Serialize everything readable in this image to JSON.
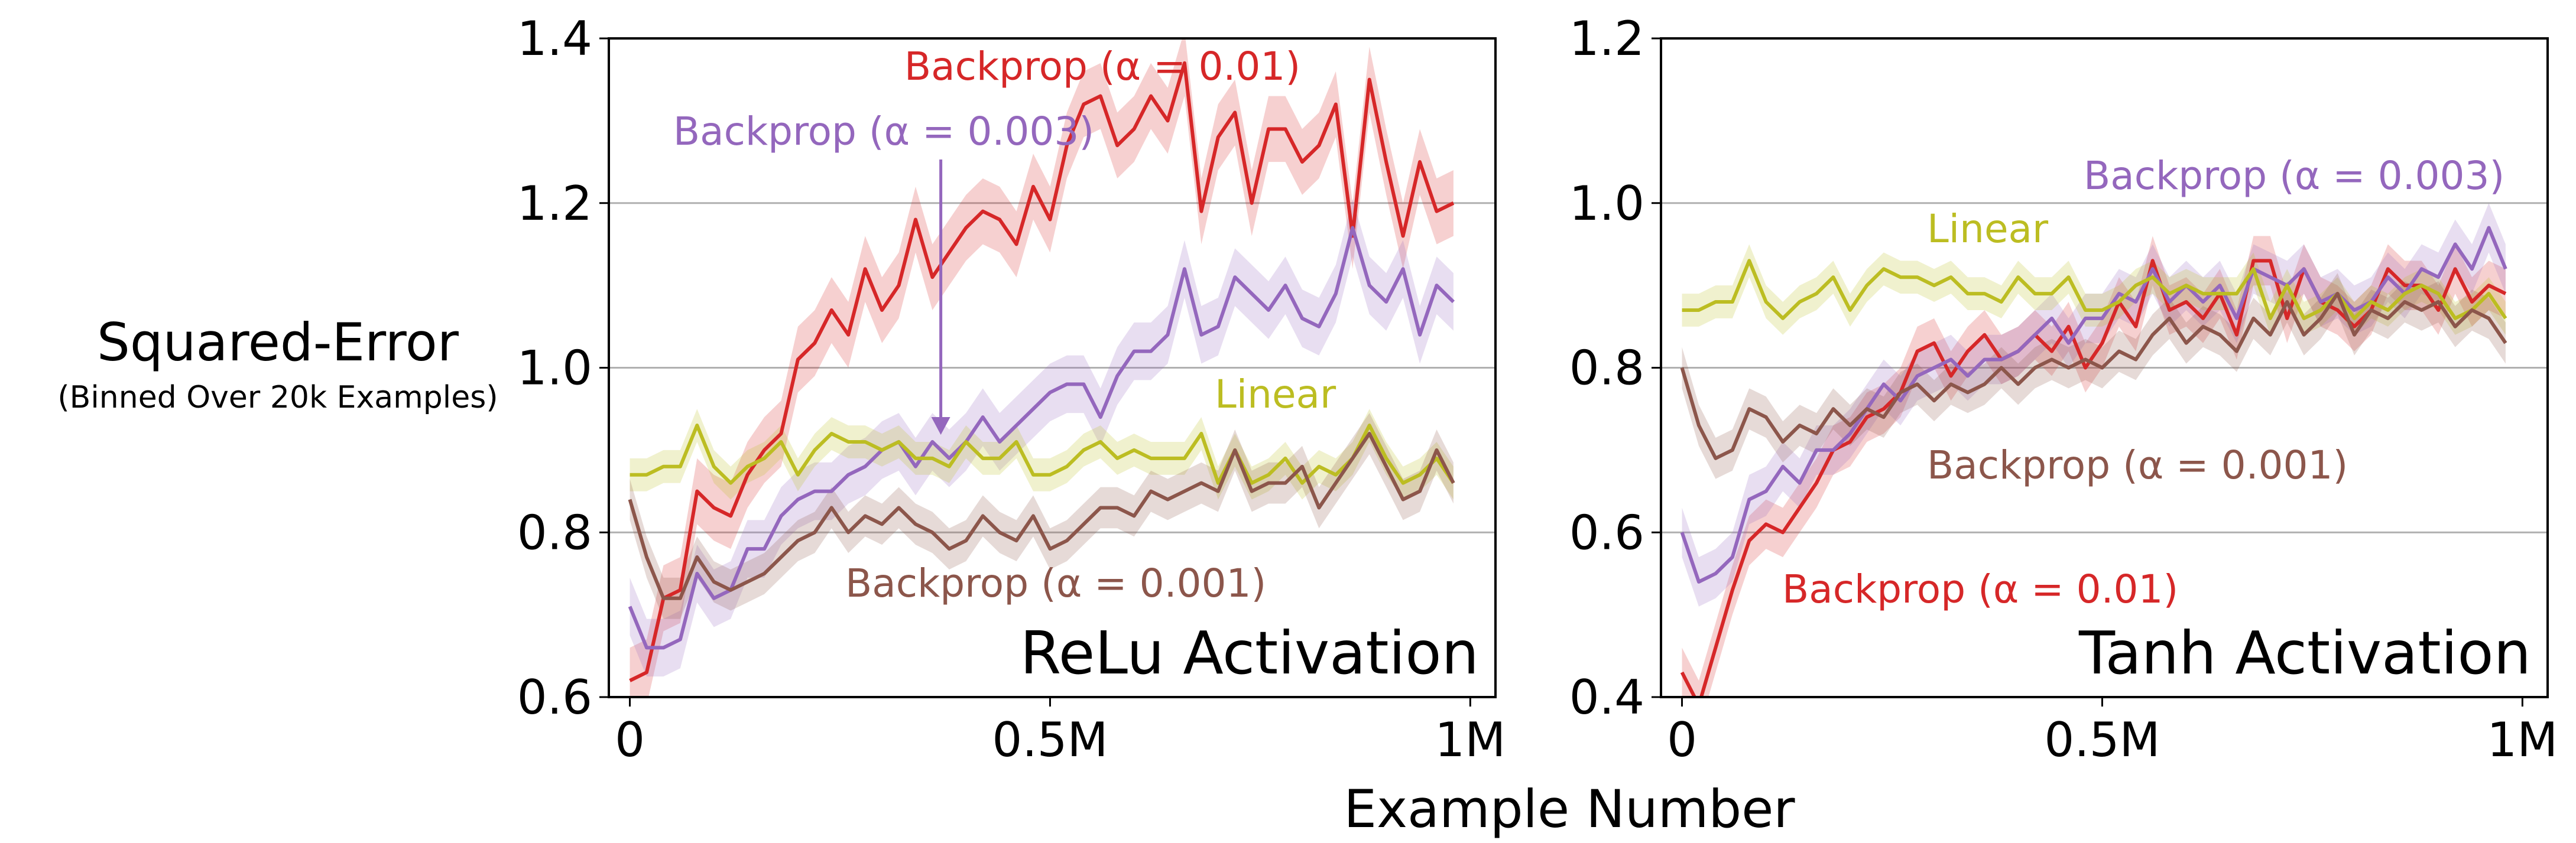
{
  "figure": {
    "ylabel": "Squared-Error",
    "ylabel_sub": "(Binned Over 20k Examples)",
    "xlabel": "Example Number",
    "x_tick_labels": [
      "0",
      "0.5M",
      "1M"
    ]
  },
  "colors": {
    "red": "#d62728",
    "purple": "#9467bd",
    "olive": "#bcbd22",
    "brown": "#8c564b",
    "grid": "#b0b0b0"
  },
  "chart_data": [
    {
      "type": "line",
      "title": "ReLu Activation",
      "xlim": [
        -0.025,
        1.03
      ],
      "ylim": [
        0.6,
        1.4
      ],
      "x_unit": "M",
      "y_ticks": [
        "0.6",
        "0.8",
        "1.0",
        "1.2",
        "1.4"
      ],
      "y_tick_values": [
        0.6,
        0.8,
        1.0,
        1.2,
        1.4
      ],
      "grid": "horizontal",
      "x": [
        0.0,
        0.02,
        0.04,
        0.06,
        0.08,
        0.1,
        0.12,
        0.14,
        0.16,
        0.18,
        0.2,
        0.22,
        0.24,
        0.26,
        0.28,
        0.3,
        0.32,
        0.34,
        0.36,
        0.38,
        0.4,
        0.42,
        0.44,
        0.46,
        0.48,
        0.5,
        0.52,
        0.54,
        0.56,
        0.58,
        0.6,
        0.62,
        0.64,
        0.66,
        0.68,
        0.7,
        0.72,
        0.74,
        0.76,
        0.78,
        0.8,
        0.82,
        0.84,
        0.86,
        0.88,
        0.9,
        0.92,
        0.94,
        0.96,
        0.98
      ],
      "series": [
        {
          "name": "Backprop (α = 0.01)",
          "color_key": "red",
          "label_text": "Backprop (α = 0.01)",
          "values": [
            0.62,
            0.63,
            0.72,
            0.73,
            0.85,
            0.83,
            0.82,
            0.87,
            0.9,
            0.92,
            1.01,
            1.03,
            1.07,
            1.04,
            1.12,
            1.07,
            1.1,
            1.18,
            1.11,
            1.14,
            1.17,
            1.19,
            1.18,
            1.15,
            1.22,
            1.18,
            1.27,
            1.32,
            1.33,
            1.27,
            1.29,
            1.33,
            1.3,
            1.37,
            1.19,
            1.28,
            1.31,
            1.2,
            1.29,
            1.29,
            1.25,
            1.27,
            1.32,
            1.16,
            1.35,
            1.25,
            1.16,
            1.25,
            1.19,
            1.2
          ],
          "band": 0.04
        },
        {
          "name": "Backprop (α = 0.003)",
          "color_key": "purple",
          "label_text": "Backprop (α = 0.003)",
          "values": [
            0.71,
            0.66,
            0.66,
            0.67,
            0.75,
            0.72,
            0.73,
            0.78,
            0.78,
            0.82,
            0.84,
            0.85,
            0.85,
            0.87,
            0.88,
            0.9,
            0.91,
            0.88,
            0.91,
            0.89,
            0.91,
            0.94,
            0.91,
            0.93,
            0.95,
            0.97,
            0.98,
            0.98,
            0.94,
            0.99,
            1.02,
            1.02,
            1.04,
            1.12,
            1.04,
            1.05,
            1.11,
            1.09,
            1.07,
            1.1,
            1.06,
            1.05,
            1.09,
            1.17,
            1.1,
            1.08,
            1.12,
            1.04,
            1.1,
            1.08
          ],
          "band": 0.035
        },
        {
          "name": "Linear",
          "color_key": "olive",
          "label_text": "Linear",
          "values": [
            0.87,
            0.87,
            0.88,
            0.88,
            0.93,
            0.88,
            0.86,
            0.88,
            0.89,
            0.91,
            0.87,
            0.9,
            0.92,
            0.91,
            0.91,
            0.9,
            0.91,
            0.89,
            0.89,
            0.88,
            0.91,
            0.89,
            0.89,
            0.91,
            0.87,
            0.87,
            0.88,
            0.9,
            0.91,
            0.89,
            0.9,
            0.89,
            0.89,
            0.89,
            0.92,
            0.86,
            0.9,
            0.86,
            0.87,
            0.89,
            0.86,
            0.88,
            0.87,
            0.89,
            0.93,
            0.89,
            0.86,
            0.87,
            0.89,
            0.86
          ],
          "band": 0.02
        },
        {
          "name": "Backprop (α = 0.001)",
          "color_key": "brown",
          "label_text": "Backprop (α = 0.001)",
          "values": [
            0.84,
            0.77,
            0.72,
            0.72,
            0.77,
            0.74,
            0.73,
            0.74,
            0.75,
            0.77,
            0.79,
            0.8,
            0.83,
            0.8,
            0.82,
            0.81,
            0.83,
            0.81,
            0.8,
            0.78,
            0.79,
            0.82,
            0.8,
            0.79,
            0.82,
            0.78,
            0.79,
            0.81,
            0.83,
            0.83,
            0.82,
            0.85,
            0.84,
            0.85,
            0.86,
            0.85,
            0.9,
            0.85,
            0.86,
            0.86,
            0.88,
            0.83,
            0.86,
            0.89,
            0.92,
            0.88,
            0.84,
            0.85,
            0.9,
            0.86
          ],
          "band": 0.025
        }
      ]
    },
    {
      "type": "line",
      "title": "Tanh Activation",
      "xlim": [
        -0.025,
        1.03
      ],
      "ylim": [
        0.4,
        1.2
      ],
      "x_unit": "M",
      "y_ticks": [
        "0.4",
        "0.6",
        "0.8",
        "1.0",
        "1.2"
      ],
      "y_tick_values": [
        0.4,
        0.6,
        0.8,
        1.0,
        1.2
      ],
      "grid": "horizontal",
      "x": [
        0.0,
        0.02,
        0.04,
        0.06,
        0.08,
        0.1,
        0.12,
        0.14,
        0.16,
        0.18,
        0.2,
        0.22,
        0.24,
        0.26,
        0.28,
        0.3,
        0.32,
        0.34,
        0.36,
        0.38,
        0.4,
        0.42,
        0.44,
        0.46,
        0.48,
        0.5,
        0.52,
        0.54,
        0.56,
        0.58,
        0.6,
        0.62,
        0.64,
        0.66,
        0.68,
        0.7,
        0.72,
        0.74,
        0.76,
        0.78,
        0.8,
        0.82,
        0.84,
        0.86,
        0.88,
        0.9,
        0.92,
        0.94,
        0.96,
        0.98
      ],
      "series": [
        {
          "name": "Backprop (α = 0.01)",
          "color_key": "red",
          "label_text": "Backprop (α = 0.01)",
          "values": [
            0.43,
            0.39,
            0.46,
            0.53,
            0.59,
            0.61,
            0.6,
            0.63,
            0.66,
            0.7,
            0.71,
            0.74,
            0.75,
            0.77,
            0.82,
            0.83,
            0.79,
            0.82,
            0.84,
            0.81,
            0.82,
            0.84,
            0.82,
            0.85,
            0.8,
            0.83,
            0.88,
            0.85,
            0.93,
            0.87,
            0.88,
            0.86,
            0.89,
            0.84,
            0.93,
            0.93,
            0.86,
            0.92,
            0.88,
            0.87,
            0.85,
            0.87,
            0.92,
            0.9,
            0.9,
            0.87,
            0.92,
            0.88,
            0.9,
            0.89
          ],
          "band": 0.03
        },
        {
          "name": "Backprop (α = 0.003)",
          "color_key": "purple",
          "label_text": "Backprop (α = 0.003)",
          "values": [
            0.6,
            0.54,
            0.55,
            0.57,
            0.64,
            0.65,
            0.68,
            0.66,
            0.7,
            0.7,
            0.72,
            0.75,
            0.78,
            0.76,
            0.79,
            0.8,
            0.81,
            0.79,
            0.81,
            0.81,
            0.82,
            0.84,
            0.86,
            0.83,
            0.86,
            0.86,
            0.89,
            0.88,
            0.92,
            0.88,
            0.9,
            0.88,
            0.9,
            0.86,
            0.92,
            0.91,
            0.9,
            0.92,
            0.88,
            0.89,
            0.87,
            0.88,
            0.91,
            0.89,
            0.92,
            0.91,
            0.95,
            0.92,
            0.97,
            0.92
          ],
          "band": 0.03
        },
        {
          "name": "Linear",
          "color_key": "olive",
          "label_text": "Linear",
          "values": [
            0.87,
            0.87,
            0.88,
            0.88,
            0.93,
            0.88,
            0.86,
            0.88,
            0.89,
            0.91,
            0.87,
            0.9,
            0.92,
            0.91,
            0.91,
            0.9,
            0.91,
            0.89,
            0.89,
            0.88,
            0.91,
            0.89,
            0.89,
            0.91,
            0.87,
            0.87,
            0.88,
            0.9,
            0.91,
            0.89,
            0.9,
            0.89,
            0.89,
            0.89,
            0.92,
            0.86,
            0.9,
            0.86,
            0.87,
            0.89,
            0.86,
            0.88,
            0.87,
            0.89,
            0.9,
            0.89,
            0.86,
            0.87,
            0.89,
            0.86
          ],
          "band": 0.02
        },
        {
          "name": "Backprop (α = 0.001)",
          "color_key": "brown",
          "label_text": "Backprop (α = 0.001)",
          "values": [
            0.8,
            0.73,
            0.69,
            0.7,
            0.75,
            0.74,
            0.71,
            0.73,
            0.72,
            0.75,
            0.73,
            0.75,
            0.74,
            0.77,
            0.78,
            0.76,
            0.78,
            0.77,
            0.78,
            0.8,
            0.78,
            0.8,
            0.81,
            0.8,
            0.81,
            0.8,
            0.82,
            0.81,
            0.84,
            0.86,
            0.83,
            0.85,
            0.84,
            0.82,
            0.86,
            0.84,
            0.88,
            0.84,
            0.86,
            0.89,
            0.84,
            0.87,
            0.86,
            0.88,
            0.87,
            0.88,
            0.85,
            0.87,
            0.86,
            0.83
          ],
          "band": 0.025
        }
      ]
    }
  ]
}
